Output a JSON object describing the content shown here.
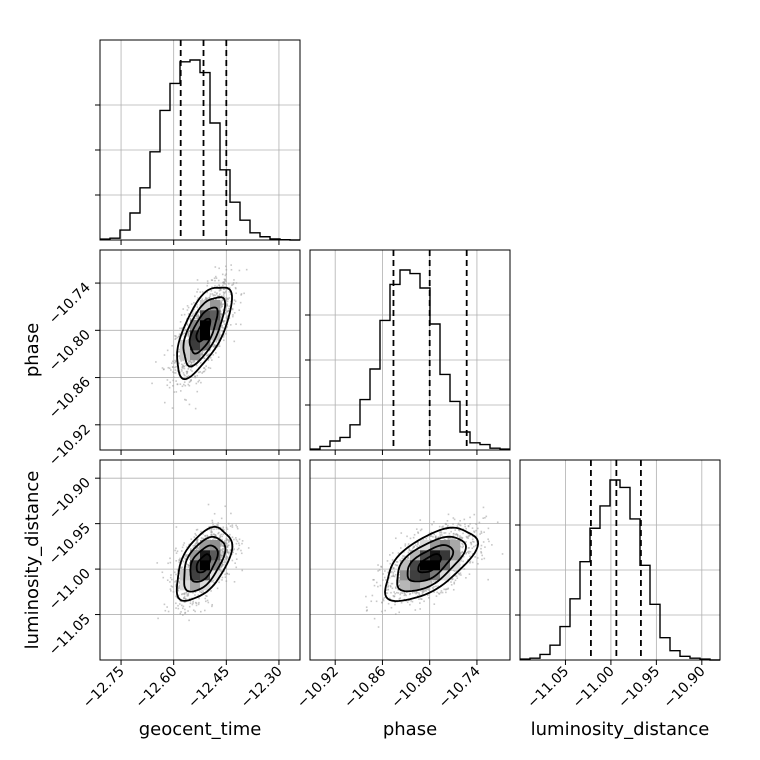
{
  "chart_data": {
    "type": "corner",
    "parameters": [
      {
        "name": "geocent_time",
        "range": [
          -12.81,
          -12.24
        ],
        "ticks": [
          -12.75,
          -12.6,
          -12.45,
          -12.3
        ],
        "tick_labels": [
          "−12.75",
          "−12.60",
          "−12.45",
          "−12.30"
        ],
        "quantiles": [
          -12.58,
          -12.515,
          -12.45
        ],
        "hist_edges_start": -12.81,
        "hist_bin_width": 0.0285,
        "hist_counts": [
          0.005,
          0.01,
          0.055,
          0.15,
          0.29,
          0.49,
          0.72,
          0.87,
          0.99,
          1.0,
          0.93,
          0.65,
          0.39,
          0.21,
          0.11,
          0.04,
          0.018,
          0.006,
          0.002,
          0.0
        ]
      },
      {
        "name": "phase",
        "range": [
          -10.952,
          -10.698
        ],
        "ticks": [
          -10.92,
          -10.86,
          -10.8,
          -10.74
        ],
        "tick_labels": [
          "−10.92",
          "−10.86",
          "−10.80",
          "−10.74"
        ],
        "quantiles": [
          -10.846,
          -10.8,
          -10.753
        ],
        "hist_edges_start": -10.952,
        "hist_bin_width": 0.0127,
        "hist_counts": [
          0.005,
          0.02,
          0.05,
          0.07,
          0.14,
          0.28,
          0.45,
          0.72,
          0.92,
          1.0,
          0.98,
          0.9,
          0.7,
          0.42,
          0.27,
          0.1,
          0.04,
          0.03,
          0.01,
          0.005
        ]
      },
      {
        "name": "luminosity_distance",
        "range": [
          -11.1,
          -10.88
        ],
        "ticks": [
          -11.05,
          -11.0,
          -10.95,
          -10.9
        ],
        "tick_labels": [
          "−11.05",
          "−11.00",
          "−10.95",
          "−10.90"
        ],
        "quantiles": [
          -11.022,
          -10.994,
          -10.967
        ],
        "hist_edges_start": -11.1,
        "hist_bin_width": 0.011,
        "hist_counts": [
          0.005,
          0.01,
          0.03,
          0.08,
          0.18,
          0.33,
          0.53,
          0.71,
          0.83,
          0.97,
          0.93,
          0.76,
          0.51,
          0.3,
          0.12,
          0.05,
          0.02,
          0.01,
          0.005,
          0.0
        ]
      }
    ],
    "pairs": [
      {
        "x": 0,
        "y": 1,
        "center": [
          -12.515,
          -10.8
        ],
        "sigma": [
          0.039,
          0.029
        ],
        "rho": 0.65
      },
      {
        "x": 0,
        "y": 2,
        "center": [
          -12.515,
          -10.994
        ],
        "sigma": [
          0.039,
          0.02
        ],
        "rho": 0.52
      },
      {
        "x": 1,
        "y": 2,
        "center": [
          -10.8,
          -10.994
        ],
        "sigma": [
          0.029,
          0.02
        ],
        "rho": 0.6
      }
    ],
    "contour_levels_sigma": [
      0.5,
      1.0,
      1.5,
      2.0
    ],
    "xlabel_rotation_deg": -45,
    "ylabel_rotation_deg": -45,
    "grid": true
  }
}
